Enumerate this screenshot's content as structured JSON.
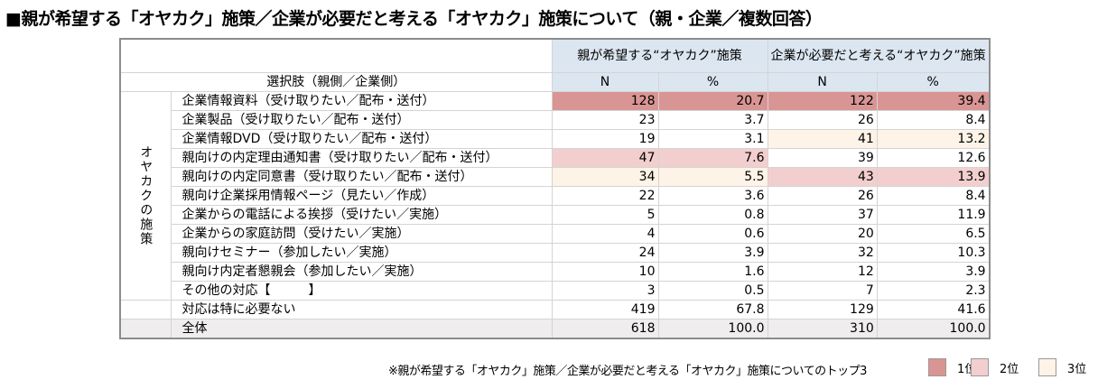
{
  "title": "■親が希望する「オヤカク」施策／企業が必要だと考える「オヤカク」施策について（親・企業／複数回答）",
  "colors": {
    "rank1": "#d99594",
    "rank2": "#f2cfce",
    "rank3": "#fdf3e6",
    "header": "#dce6f1",
    "total": "#efeded"
  },
  "chart_data": {
    "type": "table",
    "group_headers": [
      "親が希望する“オヤカク”施策",
      "企業が必要だと考える“オヤカク”施策"
    ],
    "sub_headers": [
      "N",
      "%",
      "N",
      "%"
    ],
    "choice_header": "選択肢（親側／企業側）",
    "section_label": "オヤカクの施策",
    "rows": [
      {
        "label": "企業情報資料（受け取りたい／配布・送付）",
        "values": [
          "128",
          "20.7",
          "122",
          "39.4"
        ],
        "rank_parent": 1,
        "rank_company": 1
      },
      {
        "label": "企業製品（受け取りたい／配布・送付）",
        "values": [
          "23",
          "3.7",
          "26",
          "8.4"
        ]
      },
      {
        "label": "企業情報DVD（受け取りたい／配布・送付）",
        "values": [
          "19",
          "3.1",
          "41",
          "13.2"
        ],
        "rank_company": 3
      },
      {
        "label": "親向けの内定理由通知書（受け取りたい／配布・送付）",
        "values": [
          "47",
          "7.6",
          "39",
          "12.6"
        ],
        "rank_parent": 2
      },
      {
        "label": "親向けの内定同意書（受け取りたい／配布・送付）",
        "values": [
          "34",
          "5.5",
          "43",
          "13.9"
        ],
        "rank_parent": 3,
        "rank_company": 2
      },
      {
        "label": "親向け企業採用情報ページ（見たい／作成）",
        "values": [
          "22",
          "3.6",
          "26",
          "8.4"
        ]
      },
      {
        "label": "企業からの電話による挨拶（受けたい／実施）",
        "values": [
          "5",
          "0.8",
          "37",
          "11.9"
        ]
      },
      {
        "label": "企業からの家庭訪問（受けたい／実施）",
        "values": [
          "4",
          "0.6",
          "20",
          "6.5"
        ]
      },
      {
        "label": "親向けセミナー（参加したい／実施）",
        "values": [
          "24",
          "3.9",
          "32",
          "10.3"
        ]
      },
      {
        "label": "親向け内定者懇親会（参加したい／実施）",
        "values": [
          "10",
          "1.6",
          "12",
          "3.9"
        ]
      },
      {
        "label": "その他の対応【　　　】",
        "values": [
          "3",
          "0.5",
          "7",
          "2.3"
        ]
      }
    ],
    "none_row": {
      "label": "対応は特に必要ない",
      "values": [
        "419",
        "67.8",
        "129",
        "41.6"
      ]
    },
    "total_row": {
      "label": "全体",
      "values": [
        "618",
        "100.0",
        "310",
        "100.0"
      ]
    }
  },
  "note": "※親が希望する「オヤカク」施策／企業が必要だと考える「オヤカク」施策についてのトップ3",
  "legend": [
    "1位",
    "2位",
    "3位"
  ]
}
